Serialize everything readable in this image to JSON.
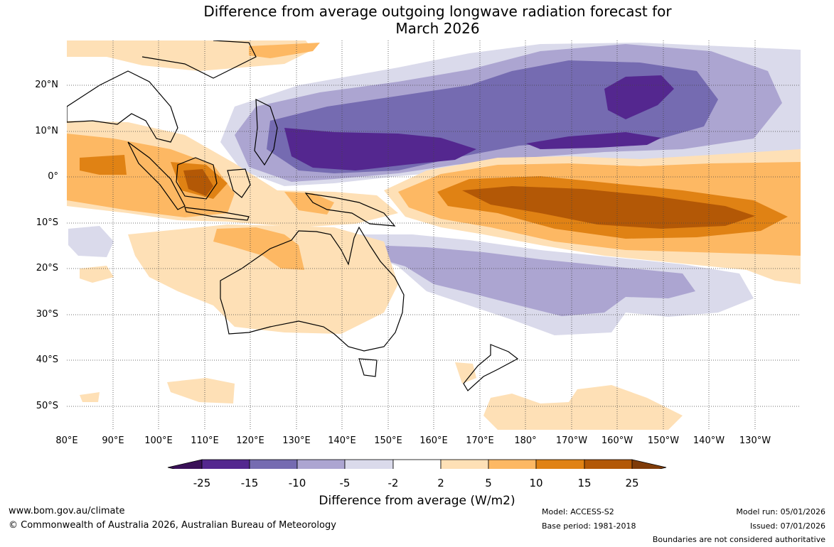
{
  "title": {
    "line1": "Difference from average outgoing longwave radiation forecast for",
    "line2": "March 2026"
  },
  "map": {
    "lat_labels": [
      "20°N",
      "10°N",
      "0°",
      "10°S",
      "20°S",
      "30°S",
      "40°S",
      "50°S"
    ],
    "lon_labels": [
      "80°E",
      "90°E",
      "100°E",
      "110°E",
      "120°E",
      "130°E",
      "140°E",
      "150°E",
      "160°E",
      "170°E",
      "180°",
      "170°W",
      "160°W",
      "150°W",
      "140°W",
      "130°W"
    ]
  },
  "colorbar": {
    "ticks": [
      "-25",
      "-15",
      "-10",
      "-5",
      "-2",
      "2",
      "5",
      "10",
      "15",
      "25"
    ],
    "colors": [
      "#3a1158",
      "#54278f",
      "#756bb1",
      "#aca5d1",
      "#dadaeb",
      "#ffffff",
      "#fee0b6",
      "#fdb863",
      "#e08214",
      "#b35806",
      "#7f3b08"
    ],
    "title": "Difference from average (W/m2)"
  },
  "footer": {
    "url": "www.bom.gov.au/climate",
    "copyright": "© Commonwealth of Australia 2026, Australian Bureau of Meteorology",
    "model": "Model: ACCESS-S2",
    "base_period": "Base period: 1981-2018",
    "model_run": "Model run: 05/01/2026",
    "issued": "Issued: 07/01/2026",
    "disclaimer": "Boundaries are not considered authoritative"
  }
}
